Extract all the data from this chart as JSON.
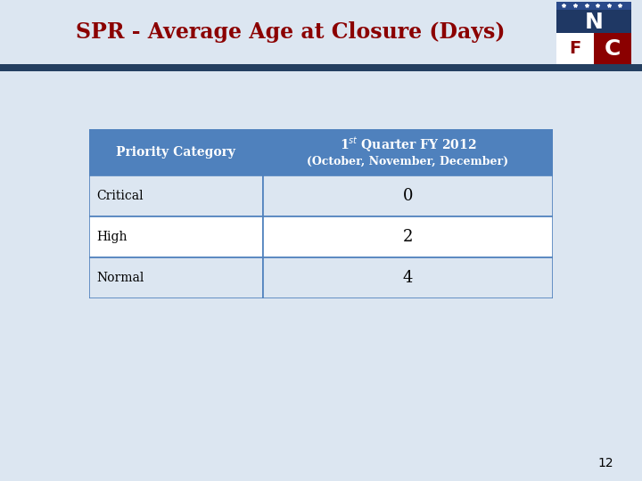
{
  "title": "SPR - Average Age at Closure (Days)",
  "title_color": "#8B0000",
  "page_bg": "#dce6f1",
  "col1_header": "Priority Category",
  "col2_header_line1": "1$^{st}$ Quarter FY 2012",
  "col2_header_line2": "(October, November, December)",
  "rows": [
    {
      "category": "Critical",
      "value": "0"
    },
    {
      "category": "High",
      "value": "2"
    },
    {
      "category": "Normal",
      "value": "4"
    }
  ],
  "table_header_bg": "#4F81BD",
  "table_header_text": "#FFFFFF",
  "table_row_bg_odd": "#dce6f1",
  "table_row_bg_even": "#FFFFFF",
  "table_border_color": "#4F81BD",
  "blue_bar_color": "#243F60",
  "page_number": "12",
  "logo_navy": "#1F3864",
  "logo_red": "#8B0000"
}
